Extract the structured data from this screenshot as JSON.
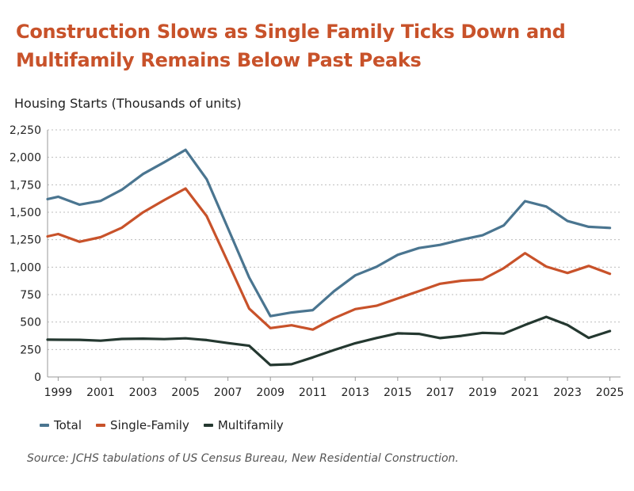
{
  "title": "Construction Slows as Single Family Ticks Down and Multifamily Remains Below Past Peaks",
  "source": "Source: JCHS tabulations of US Census Bureau, New Residential Construction.",
  "chart_data": {
    "type": "line",
    "ylabel": "Housing Starts (Thousands of units)",
    "xlabel": "",
    "ylim": [
      0,
      2250
    ],
    "yticks": [
      0,
      250,
      500,
      750,
      1000,
      1250,
      1500,
      1750,
      2000,
      2250
    ],
    "ytick_labels": [
      "0",
      "250",
      "500",
      "750",
      "1,000",
      "1,250",
      "1,500",
      "1,750",
      "2,000",
      "2,250"
    ],
    "xlim": [
      1998.5,
      2025.5
    ],
    "xticks": [
      1999,
      2001,
      2003,
      2005,
      2007,
      2009,
      2011,
      2013,
      2015,
      2017,
      2019,
      2021,
      2023,
      2025
    ],
    "grid": "horizontal-dotted",
    "legend_position": "bottom-left",
    "x": [
      1998.5,
      1999,
      2000,
      2001,
      2002,
      2003,
      2004,
      2005,
      2006,
      2007,
      2008,
      2009,
      2010,
      2011,
      2012,
      2013,
      2014,
      2015,
      2016,
      2017,
      2018,
      2019,
      2020,
      2021,
      2022,
      2023,
      2024,
      2025
    ],
    "series": [
      {
        "name": "Total",
        "color": "#4a7590",
        "values": [
          1620,
          1641,
          1569,
          1603,
          1705,
          1848,
          1956,
          2068,
          1801,
          1355,
          906,
          554,
          587,
          609,
          781,
          925,
          1003,
          1112,
          1174,
          1203,
          1250,
          1290,
          1380,
          1601,
          1552,
          1420,
          1367,
          1357
        ]
      },
      {
        "name": "Single-Family",
        "color": "#c8522a",
        "values": [
          1280,
          1302,
          1231,
          1273,
          1359,
          1499,
          1611,
          1716,
          1465,
          1046,
          622,
          445,
          471,
          431,
          535,
          618,
          648,
          715,
          782,
          849,
          876,
          888,
          991,
          1127,
          1005,
          947,
          1011,
          940
        ]
      },
      {
        "name": "Multifamily",
        "color": "#243830",
        "values": [
          340,
          339,
          338,
          330,
          346,
          349,
          345,
          352,
          336,
          309,
          284,
          109,
          116,
          178,
          245,
          307,
          355,
          397,
          392,
          354,
          374,
          402,
          395,
          474,
          547,
          473,
          356,
          418
        ]
      }
    ]
  }
}
